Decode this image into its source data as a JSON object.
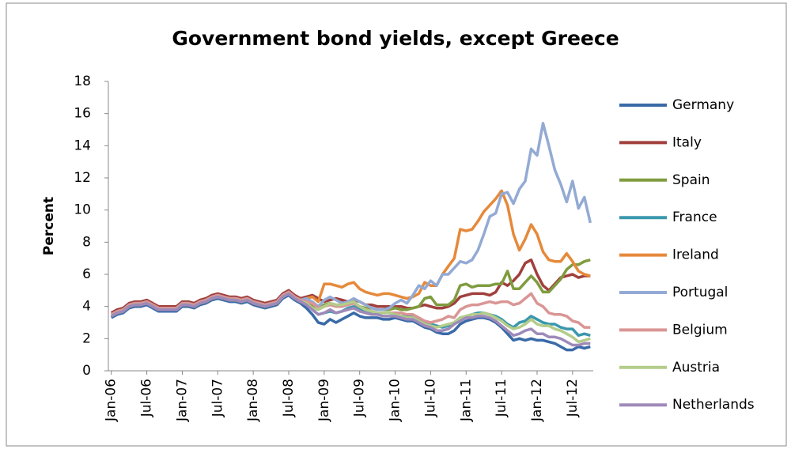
{
  "chart_data": {
    "type": "line",
    "title": "Government bond yields, except Greece",
    "y_label": "Percent",
    "categories": [
      "Jan-06",
      null,
      null,
      null,
      null,
      null,
      "Jul-06",
      null,
      null,
      null,
      null,
      null,
      "Jan-07",
      null,
      null,
      null,
      null,
      null,
      "Jul-07",
      null,
      null,
      null,
      null,
      null,
      "Jan-08",
      null,
      null,
      null,
      null,
      null,
      "Jul-08",
      null,
      null,
      null,
      null,
      null,
      "Jan-09",
      null,
      null,
      null,
      null,
      null,
      "Jul-09",
      null,
      null,
      null,
      null,
      null,
      "Jan-10",
      null,
      null,
      null,
      null,
      null,
      "Jul-10",
      null,
      null,
      null,
      null,
      null,
      "Jan-11",
      null,
      null,
      null,
      null,
      null,
      "Jul-11",
      null,
      null,
      null,
      null,
      null,
      "Jan-12",
      null,
      null,
      null,
      null,
      null,
      "Jul-12",
      null,
      null,
      null
    ],
    "ylim": [
      0,
      18
    ],
    "yticks": [
      0,
      2,
      4,
      6,
      8,
      10,
      12,
      14,
      16,
      18
    ],
    "grid": false,
    "legend": "right",
    "series": [
      {
        "name": "Germany",
        "color": "#3a6aa8",
        "values": [
          3.3,
          3.5,
          3.6,
          3.9,
          4.0,
          4.0,
          4.1,
          3.9,
          3.7,
          3.7,
          3.7,
          3.7,
          4.0,
          4.0,
          3.9,
          4.1,
          4.2,
          4.4,
          4.5,
          4.4,
          4.3,
          4.3,
          4.2,
          4.3,
          4.1,
          4.0,
          3.9,
          4.0,
          4.1,
          4.5,
          4.7,
          4.4,
          4.2,
          3.9,
          3.5,
          3.0,
          2.9,
          3.2,
          3.0,
          3.2,
          3.4,
          3.6,
          3.4,
          3.3,
          3.3,
          3.3,
          3.2,
          3.2,
          3.3,
          3.2,
          3.1,
          3.1,
          2.9,
          2.7,
          2.6,
          2.4,
          2.3,
          2.3,
          2.5,
          2.9,
          3.1,
          3.2,
          3.3,
          3.3,
          3.2,
          3.0,
          2.7,
          2.3,
          1.9,
          2.0,
          1.9,
          2.0,
          1.9,
          1.9,
          1.8,
          1.7,
          1.5,
          1.3,
          1.3,
          1.5,
          1.4,
          1.5
        ]
      },
      {
        "name": "Italy",
        "color": "#a0403d",
        "values": [
          3.6,
          3.8,
          3.9,
          4.2,
          4.3,
          4.3,
          4.4,
          4.2,
          4.0,
          4.0,
          4.0,
          4.0,
          4.3,
          4.3,
          4.2,
          4.4,
          4.5,
          4.7,
          4.8,
          4.7,
          4.6,
          4.6,
          4.5,
          4.6,
          4.4,
          4.3,
          4.2,
          4.3,
          4.4,
          4.8,
          5.0,
          4.7,
          4.5,
          4.6,
          4.7,
          4.5,
          4.3,
          4.4,
          4.5,
          4.4,
          4.3,
          4.4,
          4.3,
          4.1,
          4.1,
          4.0,
          4.0,
          4.0,
          4.0,
          4.0,
          3.9,
          3.9,
          4.0,
          4.1,
          4.0,
          3.9,
          3.9,
          4.0,
          4.2,
          4.6,
          4.7,
          4.8,
          4.8,
          4.8,
          4.7,
          4.9,
          5.5,
          5.3,
          5.6,
          6.0,
          6.7,
          6.9,
          6.0,
          5.3,
          5.0,
          5.4,
          5.8,
          5.9,
          6.0,
          5.8,
          5.9,
          5.9
        ]
      },
      {
        "name": "Spain",
        "color": "#7f9c3f",
        "values": [
          3.4,
          3.6,
          3.7,
          4.0,
          4.1,
          4.1,
          4.2,
          4.0,
          3.8,
          3.8,
          3.8,
          3.8,
          4.1,
          4.1,
          4.0,
          4.2,
          4.3,
          4.5,
          4.6,
          4.5,
          4.4,
          4.4,
          4.3,
          4.4,
          4.2,
          4.1,
          4.0,
          4.1,
          4.2,
          4.6,
          4.8,
          4.5,
          4.3,
          4.3,
          4.1,
          3.9,
          4.1,
          4.2,
          4.1,
          4.1,
          4.1,
          4.2,
          4.0,
          3.9,
          3.9,
          3.8,
          3.8,
          3.8,
          3.9,
          3.8,
          3.8,
          3.9,
          4.0,
          4.5,
          4.6,
          4.1,
          4.1,
          4.1,
          4.4,
          5.3,
          5.4,
          5.2,
          5.3,
          5.3,
          5.3,
          5.4,
          5.4,
          6.2,
          5.1,
          5.1,
          5.5,
          5.9,
          5.5,
          4.9,
          4.9,
          5.3,
          5.7,
          6.3,
          6.6,
          6.6,
          6.8,
          6.9
        ]
      },
      {
        "name": "France",
        "color": "#3a97ad",
        "values": [
          3.4,
          3.6,
          3.7,
          4.0,
          4.1,
          4.1,
          4.2,
          4.0,
          3.8,
          3.8,
          3.8,
          3.8,
          4.1,
          4.1,
          4.0,
          4.2,
          4.3,
          4.5,
          4.6,
          4.5,
          4.4,
          4.4,
          4.3,
          4.4,
          4.2,
          4.1,
          4.0,
          4.1,
          4.2,
          4.6,
          4.8,
          4.5,
          4.3,
          4.1,
          3.8,
          3.5,
          3.6,
          3.7,
          3.6,
          3.7,
          3.9,
          4.0,
          3.8,
          3.7,
          3.6,
          3.6,
          3.6,
          3.6,
          3.5,
          3.4,
          3.4,
          3.4,
          3.2,
          3.0,
          2.9,
          2.8,
          2.7,
          2.8,
          3.0,
          3.3,
          3.4,
          3.5,
          3.6,
          3.6,
          3.5,
          3.4,
          3.2,
          2.9,
          2.7,
          3.0,
          3.1,
          3.4,
          3.2,
          3.0,
          2.9,
          2.9,
          2.7,
          2.6,
          2.6,
          2.2,
          2.3,
          2.2
        ]
      },
      {
        "name": "Ireland",
        "color": "#e6893a",
        "values": [
          3.4,
          3.6,
          3.7,
          4.0,
          4.1,
          4.1,
          4.2,
          4.0,
          3.8,
          3.8,
          3.8,
          3.8,
          4.1,
          4.1,
          4.0,
          4.2,
          4.3,
          4.5,
          4.6,
          4.5,
          4.4,
          4.4,
          4.3,
          4.4,
          4.2,
          4.1,
          4.0,
          4.1,
          4.2,
          4.6,
          4.8,
          4.5,
          4.3,
          4.5,
          4.6,
          4.3,
          5.4,
          5.4,
          5.3,
          5.2,
          5.4,
          5.5,
          5.1,
          4.9,
          4.8,
          4.7,
          4.8,
          4.8,
          4.7,
          4.6,
          4.5,
          4.6,
          4.8,
          5.5,
          5.3,
          5.3,
          6.0,
          6.5,
          7.0,
          8.8,
          8.7,
          8.8,
          9.3,
          9.9,
          10.3,
          10.7,
          11.2,
          10.3,
          8.5,
          7.5,
          8.2,
          9.1,
          8.5,
          7.4,
          6.9,
          6.8,
          6.8,
          7.3,
          6.8,
          6.2,
          6.0,
          5.9
        ]
      },
      {
        "name": "Portugal",
        "color": "#93aad4",
        "values": [
          3.5,
          3.7,
          3.8,
          4.1,
          4.2,
          4.2,
          4.3,
          4.1,
          3.9,
          3.9,
          3.9,
          3.9,
          4.2,
          4.2,
          4.1,
          4.3,
          4.4,
          4.6,
          4.7,
          4.6,
          4.5,
          4.5,
          4.4,
          4.5,
          4.3,
          4.2,
          4.1,
          4.2,
          4.3,
          4.7,
          4.9,
          4.6,
          4.4,
          4.5,
          4.3,
          4.0,
          4.4,
          4.6,
          4.4,
          4.2,
          4.3,
          4.5,
          4.3,
          4.1,
          3.9,
          3.8,
          3.8,
          3.9,
          4.2,
          4.4,
          4.2,
          4.7,
          5.3,
          5.1,
          5.6,
          5.3,
          6.0,
          6.0,
          6.4,
          6.8,
          6.7,
          6.9,
          7.5,
          8.5,
          9.6,
          9.8,
          11.0,
          11.1,
          10.4,
          11.3,
          11.8,
          13.8,
          13.4,
          15.4,
          14.0,
          12.5,
          11.6,
          10.5,
          11.8,
          10.1,
          10.8,
          9.2
        ]
      },
      {
        "name": "Belgium",
        "color": "#d99694",
        "values": [
          3.5,
          3.7,
          3.8,
          4.1,
          4.2,
          4.2,
          4.3,
          4.1,
          3.9,
          3.9,
          3.9,
          3.9,
          4.2,
          4.2,
          4.1,
          4.3,
          4.4,
          4.6,
          4.7,
          4.6,
          4.5,
          4.5,
          4.4,
          4.5,
          4.3,
          4.2,
          4.1,
          4.2,
          4.3,
          4.7,
          4.9,
          4.6,
          4.4,
          4.3,
          4.2,
          3.9,
          4.0,
          4.1,
          4.0,
          4.0,
          4.1,
          4.2,
          4.0,
          3.8,
          3.7,
          3.6,
          3.6,
          3.6,
          3.6,
          3.6,
          3.5,
          3.5,
          3.3,
          3.1,
          3.0,
          3.1,
          3.2,
          3.4,
          3.3,
          3.8,
          4.0,
          4.1,
          4.1,
          4.2,
          4.3,
          4.2,
          4.3,
          4.3,
          4.1,
          4.2,
          4.5,
          4.8,
          4.2,
          4.0,
          3.6,
          3.5,
          3.5,
          3.4,
          3.1,
          3.0,
          2.7,
          2.7
        ]
      },
      {
        "name": "Austria",
        "color": "#b3cc8a",
        "values": [
          3.4,
          3.6,
          3.7,
          4.0,
          4.1,
          4.1,
          4.2,
          4.0,
          3.8,
          3.8,
          3.8,
          3.8,
          4.1,
          4.1,
          4.0,
          4.2,
          4.3,
          4.5,
          4.6,
          4.5,
          4.4,
          4.4,
          4.3,
          4.4,
          4.2,
          4.1,
          4.0,
          4.1,
          4.2,
          4.6,
          4.8,
          4.5,
          4.3,
          4.2,
          3.9,
          3.8,
          4.0,
          4.2,
          4.1,
          4.1,
          4.2,
          4.3,
          4.0,
          3.8,
          3.7,
          3.6,
          3.6,
          3.6,
          3.5,
          3.4,
          3.3,
          3.3,
          3.1,
          2.9,
          2.8,
          2.7,
          2.8,
          2.9,
          3.0,
          3.3,
          3.4,
          3.5,
          3.5,
          3.6,
          3.5,
          3.3,
          3.1,
          2.8,
          2.6,
          2.7,
          2.9,
          3.2,
          2.9,
          2.8,
          2.8,
          2.6,
          2.5,
          2.3,
          2.1,
          1.8,
          1.9,
          2.0
        ]
      },
      {
        "name": "Netherlands",
        "color": "#9e8ab8",
        "values": [
          3.4,
          3.6,
          3.7,
          4.0,
          4.1,
          4.1,
          4.2,
          4.0,
          3.8,
          3.8,
          3.8,
          3.8,
          4.1,
          4.1,
          4.0,
          4.2,
          4.3,
          4.5,
          4.6,
          4.5,
          4.4,
          4.4,
          4.3,
          4.4,
          4.2,
          4.1,
          4.0,
          4.1,
          4.2,
          4.6,
          4.8,
          4.5,
          4.3,
          4.1,
          3.8,
          3.5,
          3.6,
          3.8,
          3.6,
          3.7,
          3.8,
          3.9,
          3.7,
          3.6,
          3.5,
          3.5,
          3.4,
          3.4,
          3.4,
          3.3,
          3.2,
          3.2,
          3.0,
          2.8,
          2.7,
          2.5,
          2.5,
          2.6,
          2.9,
          3.1,
          3.3,
          3.3,
          3.4,
          3.4,
          3.3,
          3.1,
          2.8,
          2.5,
          2.2,
          2.3,
          2.5,
          2.6,
          2.3,
          2.3,
          2.1,
          2.1,
          2.0,
          1.8,
          1.6,
          1.6,
          1.7,
          1.7
        ]
      }
    ]
  }
}
